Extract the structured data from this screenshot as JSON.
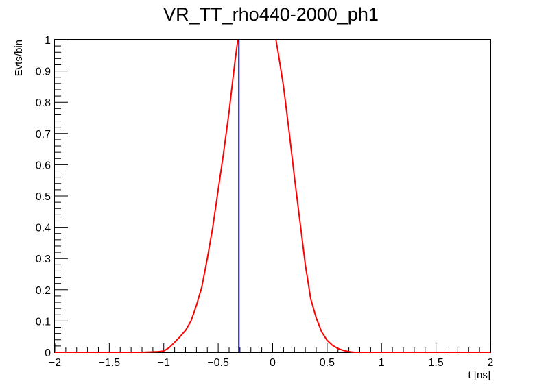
{
  "chart_data": {
    "type": "line",
    "title": "VR_TT_rho440-2000_ph1",
    "xlabel": "t [ns]",
    "ylabel": "Evts/bin",
    "xlim": [
      -2,
      2
    ],
    "ylim": [
      0,
      1
    ],
    "grid": false,
    "x_ticks": [
      -2,
      -1.5,
      -1,
      -0.5,
      0,
      0.5,
      1,
      1.5,
      2
    ],
    "x_tick_labels": [
      "−2",
      "−1.5",
      "−1",
      "−0.5",
      "0",
      "0.5",
      "1",
      "1.5",
      "2"
    ],
    "y_ticks": [
      0,
      0.1,
      0.2,
      0.3,
      0.4,
      0.5,
      0.6,
      0.7,
      0.8,
      0.9,
      1
    ],
    "y_tick_labels": [
      "0",
      "0.1",
      "0.2",
      "0.3",
      "0.4",
      "0.5",
      "0.6",
      "0.7",
      "0.8",
      "0.9",
      "1"
    ],
    "series": [
      {
        "color": "#ff0000",
        "segments": [
          [
            [
              -2,
              0
            ],
            [
              -1.2,
              0
            ],
            [
              -1.05,
              0.002
            ],
            [
              -1.0,
              0.004
            ],
            [
              -0.95,
              0.015
            ],
            [
              -0.9,
              0.032
            ],
            [
              -0.85,
              0.05
            ],
            [
              -0.8,
              0.07
            ],
            [
              -0.75,
              0.1
            ],
            [
              -0.7,
              0.15
            ],
            [
              -0.65,
              0.21
            ],
            [
              -0.6,
              0.3
            ],
            [
              -0.55,
              0.4
            ],
            [
              -0.5,
              0.52
            ],
            [
              -0.45,
              0.64
            ],
            [
              -0.4,
              0.77
            ],
            [
              -0.35,
              0.92
            ],
            [
              -0.32,
              1.0
            ]
          ],
          [
            [
              0.03,
              1.0
            ],
            [
              0.05,
              0.96
            ],
            [
              0.1,
              0.85
            ],
            [
              0.15,
              0.71
            ],
            [
              0.2,
              0.56
            ],
            [
              0.25,
              0.42
            ],
            [
              0.3,
              0.28
            ],
            [
              0.35,
              0.17
            ],
            [
              0.4,
              0.11
            ],
            [
              0.45,
              0.065
            ],
            [
              0.5,
              0.038
            ],
            [
              0.55,
              0.022
            ],
            [
              0.6,
              0.012
            ],
            [
              0.65,
              0.006
            ],
            [
              0.7,
              0.002
            ],
            [
              0.75,
              0
            ],
            [
              2,
              0
            ]
          ]
        ]
      }
    ],
    "vertical_markers": [
      {
        "x": -0.31,
        "color": "#000080"
      }
    ]
  }
}
